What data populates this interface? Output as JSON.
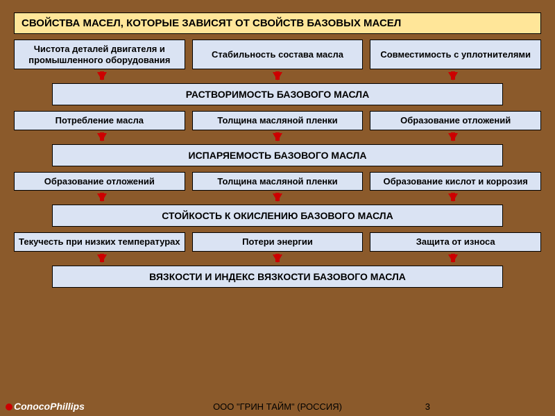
{
  "colors": {
    "background": "#8b5a2b",
    "title_bg": "#ffe699",
    "cell_bg": "#dae3f3",
    "arrow": "#cc0000",
    "text": "#000000",
    "border": "#000000"
  },
  "typography": {
    "title_fontsize": 15,
    "cell_fontsize": 13,
    "wide_fontsize": 14,
    "footer_fontsize": 13
  },
  "title": "СВОЙСТВА МАСЕЛ, КОТОРЫЕ ЗАВИСЯТ ОТ СВОЙСТВ БАЗОВЫХ МАСЕЛ",
  "sections": [
    {
      "inputs": [
        "Чистота деталей двигателя и промышленного оборудования",
        "Стабильность состава масла",
        "Совместимость с уплотнителями"
      ],
      "result": "РАСТВОРИМОСТЬ БАЗОВОГО МАСЛА"
    },
    {
      "inputs": [
        "Потребление масла",
        "Толщина масляной пленки",
        "Образование отложений"
      ],
      "result": "ИСПАРЯЕМОСТЬ БАЗОВОГО МАСЛА"
    },
    {
      "inputs": [
        "Образование отложений",
        "Толщина масляной пленки",
        "Образование кислот и коррозия"
      ],
      "result": "СТОЙКОСТЬ К ОКИСЛЕНИЮ БАЗОВОГО МАСЛА"
    },
    {
      "inputs": [
        "Текучесть при низких температурах",
        "Потери энергии",
        "Защита от износа"
      ],
      "result": "ВЯЗКОСТИ И ИНДЕКС ВЯЗКОСТИ БАЗОВОГО МАСЛА"
    }
  ],
  "footer": "ООО \"ГРИН ТАЙМ\" (РОССИЯ)",
  "page_number": "3",
  "logo_text": "ConocoPhillips"
}
